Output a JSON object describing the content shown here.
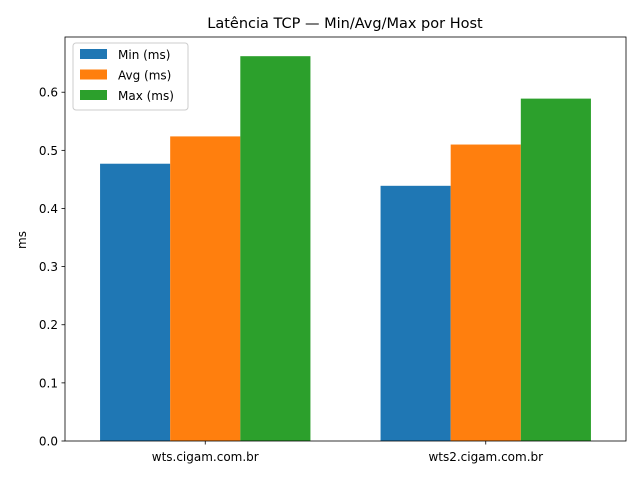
{
  "chart_data": {
    "type": "bar",
    "title": "Latência TCP — Min/Avg/Max por Host",
    "xlabel": "",
    "ylabel": "ms",
    "categories": [
      "wts.cigam.com.br",
      "wts2.cigam.com.br"
    ],
    "series": [
      {
        "name": "Min (ms)",
        "values": [
          0.477,
          0.439
        ],
        "color": "#1f77b4"
      },
      {
        "name": "Avg (ms)",
        "values": [
          0.524,
          0.51
        ],
        "color": "#ff7f0e"
      },
      {
        "name": "Max (ms)",
        "values": [
          0.662,
          0.589
        ],
        "color": "#2ca02c"
      }
    ],
    "ylim": [
      0,
      0.695
    ],
    "yticks": [
      0.0,
      0.1,
      0.2,
      0.3,
      0.4,
      0.5,
      0.6
    ],
    "ytick_labels": [
      "0.0",
      "0.1",
      "0.2",
      "0.3",
      "0.4",
      "0.5",
      "0.6"
    ],
    "grid": false,
    "legend_position": "top-left"
  }
}
